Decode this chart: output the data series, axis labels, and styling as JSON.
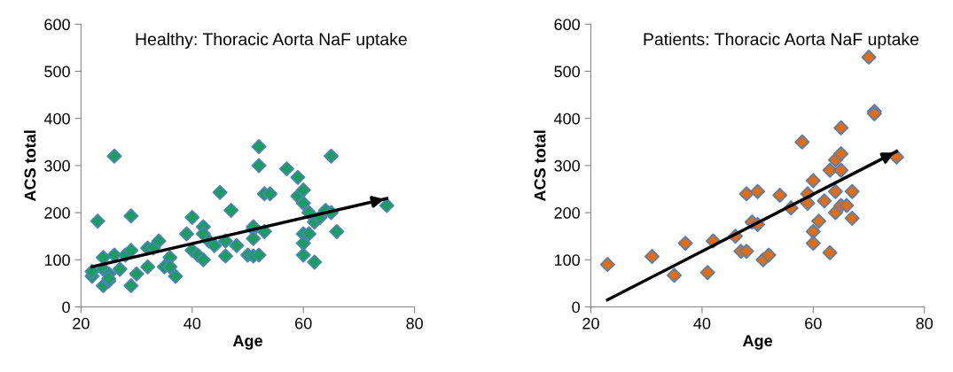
{
  "chart_data": [
    {
      "type": "scatter",
      "title": "Healthy: Thoracic Aorta NaF uptake",
      "xlabel": "Age",
      "ylabel": "ACS total",
      "xlim": [
        20,
        80
      ],
      "xticks": [
        20,
        40,
        60,
        80
      ],
      "ylim": [
        0,
        600
      ],
      "yticks": [
        0,
        100,
        200,
        300,
        400,
        500,
        600
      ],
      "grid": false,
      "legend": false,
      "marker": "diamond",
      "series": [
        {
          "color": "#16a05c",
          "x": [
            22,
            22,
            23,
            24,
            24,
            24,
            25,
            25,
            25,
            26,
            26,
            27,
            28,
            29,
            29,
            29,
            30,
            32,
            32,
            33,
            34,
            35,
            36,
            36,
            37,
            39,
            40,
            40,
            41,
            42,
            42,
            42,
            43,
            44,
            45,
            46,
            46,
            47,
            48,
            50,
            51,
            51,
            51,
            51,
            52,
            52,
            52,
            53,
            53,
            54,
            57,
            59,
            59,
            60,
            60,
            60,
            60,
            60,
            61,
            61,
            62,
            62,
            63,
            64,
            65,
            65,
            66,
            75
          ],
          "values": [
            65,
            75,
            182,
            105,
            45,
            80,
            70,
            55,
            60,
            320,
            110,
            80,
            110,
            193,
            45,
            120,
            70,
            125,
            85,
            125,
            140,
            85,
            105,
            85,
            65,
            155,
            190,
            120,
            110,
            170,
            155,
            100,
            140,
            130,
            243,
            140,
            108,
            205,
            130,
            110,
            165,
            170,
            145,
            108,
            340,
            300,
            110,
            240,
            160,
            240,
            293,
            275,
            235,
            248,
            220,
            155,
            135,
            110,
            200,
            155,
            95,
            180,
            190,
            205,
            200,
            320,
            160,
            215
          ]
        },
        {
          "type": "line",
          "color": "#000000",
          "marker": "none",
          "x": [
            22,
            75
          ],
          "values": [
            85,
            230
          ]
        }
      ]
    },
    {
      "type": "scatter",
      "title": "Patients: Thoracic Aorta NaF uptake",
      "xlabel": "Age",
      "ylabel": "ACS total",
      "xlim": [
        20,
        80
      ],
      "xticks": [
        20,
        40,
        60,
        80
      ],
      "ylim": [
        0,
        600
      ],
      "yticks": [
        0,
        100,
        200,
        300,
        400,
        500,
        600
      ],
      "grid": false,
      "legend": false,
      "marker": "diamond",
      "series": [
        {
          "color": "#e46c0a",
          "x": [
            23,
            31,
            35,
            37,
            41,
            42,
            46,
            47,
            48,
            48,
            49,
            50,
            50,
            51,
            52,
            54,
            56,
            58,
            59,
            59,
            60,
            60,
            60,
            61,
            62,
            63,
            63,
            64,
            64,
            64,
            65,
            65,
            65,
            65,
            66,
            67,
            67,
            70,
            71,
            71,
            75
          ],
          "values": [
            90,
            107,
            67,
            135,
            73,
            140,
            150,
            118,
            240,
            118,
            180,
            245,
            175,
            100,
            110,
            237,
            210,
            350,
            240,
            220,
            268,
            160,
            135,
            182,
            225,
            115,
            290,
            312,
            245,
            200,
            325,
            290,
            380,
            215,
            215,
            245,
            188,
            530,
            415,
            410,
            318
          ]
        },
        {
          "type": "line",
          "color": "#000000",
          "marker": "none",
          "x": [
            23,
            75
          ],
          "values": [
            15,
            330
          ]
        }
      ]
    }
  ]
}
